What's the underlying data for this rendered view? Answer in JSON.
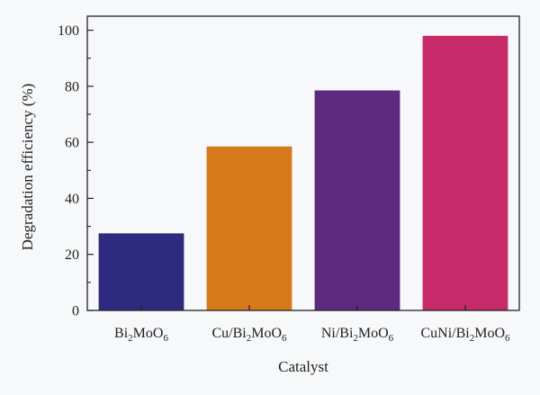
{
  "chart_data": {
    "type": "bar",
    "title": "",
    "xlabel": "Catalyst",
    "ylabel": "Degradation efficiency (%)",
    "ylim": [
      0,
      105
    ],
    "yticks": [
      0,
      20,
      40,
      60,
      80,
      100
    ],
    "categories": [
      {
        "label": "Bi2MoO6",
        "parts": [
          [
            "Bi",
            ""
          ],
          [
            "2",
            "sub"
          ],
          [
            "MoO",
            ""
          ],
          [
            "6",
            "sub"
          ]
        ]
      },
      {
        "label": "Cu/Bi2MoO6",
        "parts": [
          [
            "Cu/Bi",
            ""
          ],
          [
            "2",
            "sub"
          ],
          [
            "MoO",
            ""
          ],
          [
            "6",
            "sub"
          ]
        ]
      },
      {
        "label": "Ni/Bi2MoO6",
        "parts": [
          [
            "Ni/Bi",
            ""
          ],
          [
            "2",
            "sub"
          ],
          [
            "MoO",
            ""
          ],
          [
            "6",
            "sub"
          ]
        ]
      },
      {
        "label": "CuNi/Bi2MoO6",
        "parts": [
          [
            "CuNi/Bi",
            ""
          ],
          [
            "2",
            "sub"
          ],
          [
            "MoO",
            ""
          ],
          [
            "6",
            "sub"
          ]
        ]
      }
    ],
    "values": [
      27.5,
      58.5,
      78.5,
      98
    ],
    "colors": [
      "#2e2a80",
      "#d6791a",
      "#5e2a80",
      "#c62a68"
    ],
    "grid": false,
    "legend": "none"
  }
}
